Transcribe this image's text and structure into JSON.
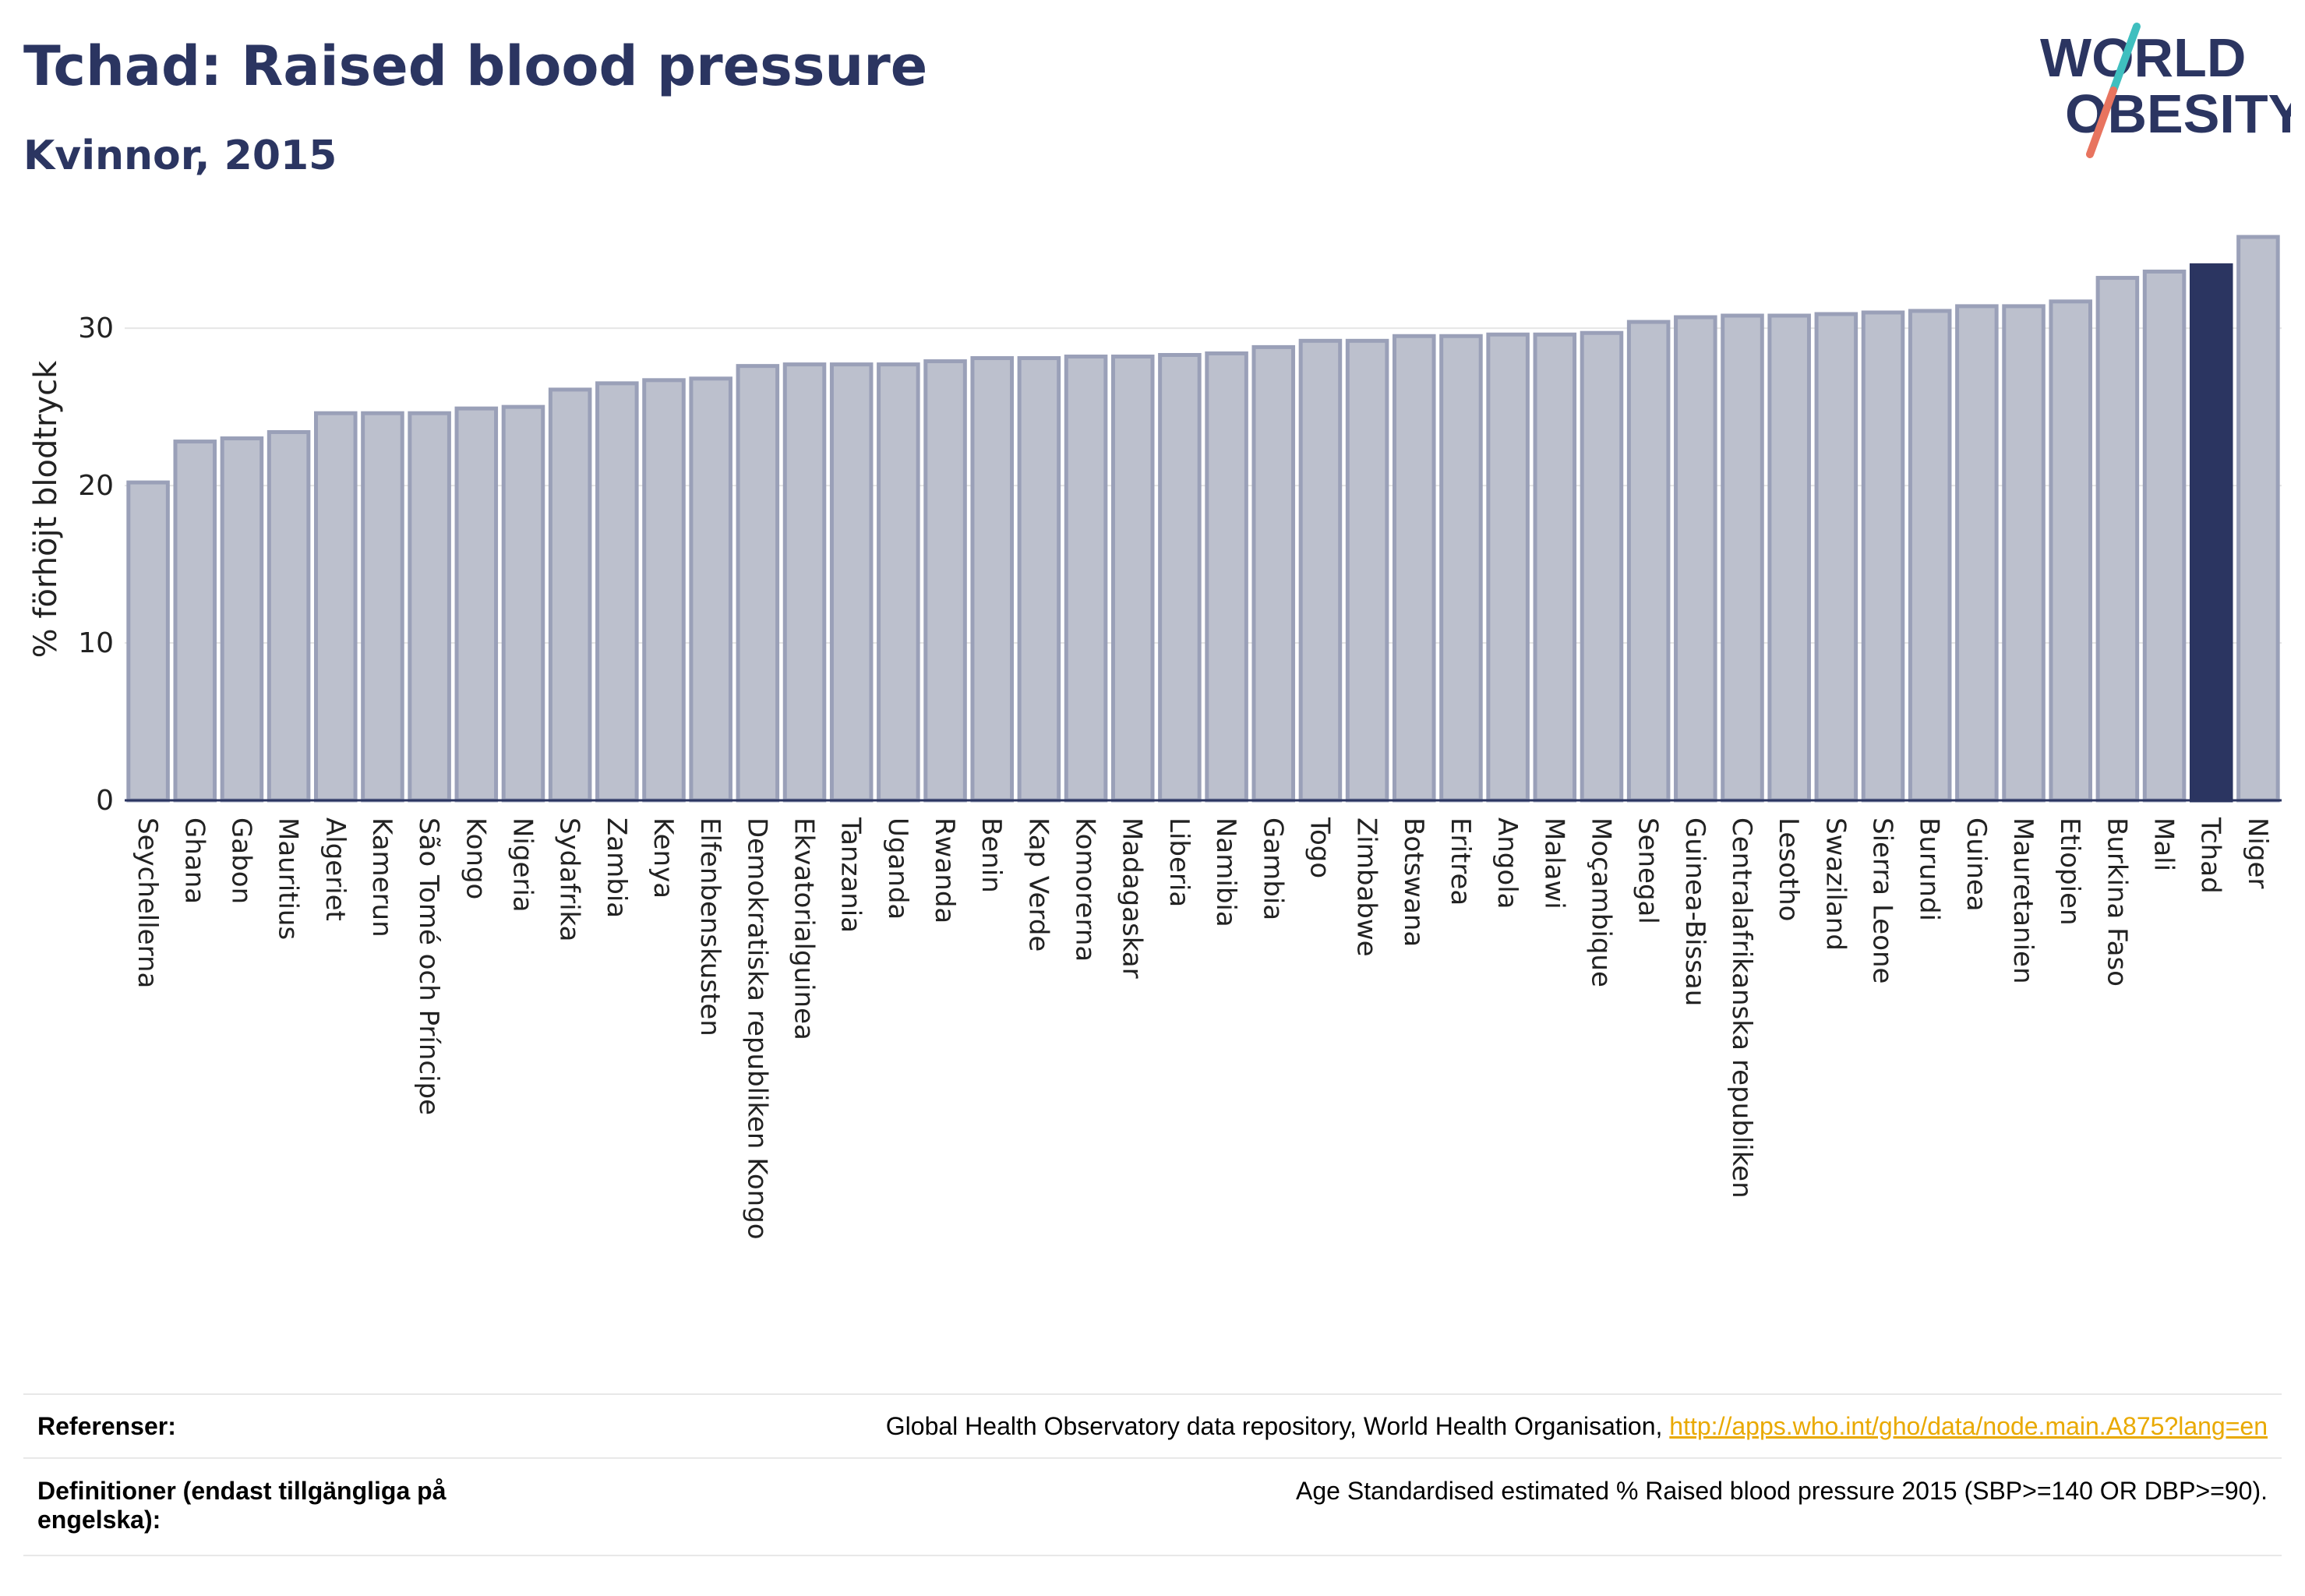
{
  "header": {
    "title": "Tchad: Raised blood pressure",
    "subtitle": "Kvinnor, 2015"
  },
  "logo": {
    "line1": "WORLD",
    "line2": "OBESITY",
    "colors": {
      "text": "#2b3561",
      "slash_teal": "#3fbfbf",
      "slash_coral": "#e8745f"
    }
  },
  "chart_data": {
    "type": "bar",
    "ylabel": "% förhöjt blodtryck",
    "xlabel": "",
    "ylim": [
      0,
      36
    ],
    "yticks": [
      0,
      10,
      20,
      30
    ],
    "grid": true,
    "highlight": "Tchad",
    "colors": {
      "bar": "#bcc0cd",
      "bar_border": "#9aa0b8",
      "highlight": "#2b3561"
    },
    "categories": [
      "Seychellerna",
      "Ghana",
      "Gabon",
      "Mauritius",
      "Algeriet",
      "Kamerun",
      "São Tomé och Príncipe",
      "Kongo",
      "Nigeria",
      "Sydafrika",
      "Zambia",
      "Kenya",
      "Elfenbenskusten",
      "Demokratiska republiken Kongo",
      "Ekvatorialguinea",
      "Tanzania",
      "Uganda",
      "Rwanda",
      "Benin",
      "Kap Verde",
      "Komorerna",
      "Madagaskar",
      "Liberia",
      "Namibia",
      "Gambia",
      "Togo",
      "Zimbabwe",
      "Botswana",
      "Eritrea",
      "Angola",
      "Malawi",
      "Moçambique",
      "Senegal",
      "Guinea-Bissau",
      "Centralafrikanska republiken",
      "Lesotho",
      "Swaziland",
      "Sierra Leone",
      "Burundi",
      "Guinea",
      "Mauretanien",
      "Etiopien",
      "Burkina Faso",
      "Mali",
      "Tchad",
      "Niger"
    ],
    "values": [
      20.2,
      22.8,
      23.0,
      23.4,
      24.6,
      24.6,
      24.6,
      24.9,
      25.0,
      26.1,
      26.5,
      26.7,
      26.8,
      27.6,
      27.7,
      27.7,
      27.7,
      27.9,
      28.1,
      28.1,
      28.2,
      28.2,
      28.3,
      28.4,
      28.8,
      29.2,
      29.2,
      29.5,
      29.5,
      29.6,
      29.6,
      29.7,
      30.4,
      30.7,
      30.8,
      30.8,
      30.9,
      31.0,
      31.1,
      31.4,
      31.4,
      31.7,
      33.2,
      33.6,
      34.0,
      35.8
    ]
  },
  "footer": {
    "references_label": "Referenser:",
    "references_text": "Global Health Observatory data repository, World Health Organisation, ",
    "references_link": "http://apps.who.int/gho/data/node.main.A875?lang=en",
    "definitions_label_line1": "Definitioner (endast tillgängliga på",
    "definitions_label_line2": "engelska):",
    "definitions_text": "Age Standardised estimated % Raised blood pressure 2015 (SBP>=140 OR DBP>=90)."
  }
}
